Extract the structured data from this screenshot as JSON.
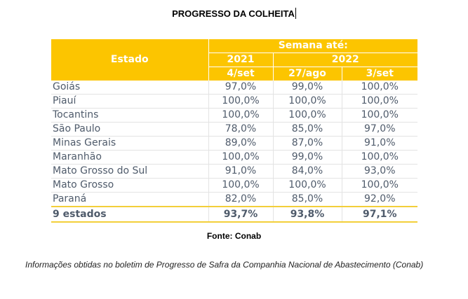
{
  "title": "PROGRESSO DA COLHEITA",
  "table": {
    "header": {
      "state": "Estado",
      "group": "Semana até:",
      "year_2021": "2021",
      "year_2022": "2022",
      "col1": "4/set",
      "col2": "27/ago",
      "col3": "3/set"
    },
    "rows": [
      {
        "state": "Goiás",
        "v1": "97,0%",
        "v2": "99,0%",
        "v3": "100,0%"
      },
      {
        "state": "Piauí",
        "v1": "100,0%",
        "v2": "100,0%",
        "v3": "100,0%"
      },
      {
        "state": "Tocantins",
        "v1": "100,0%",
        "v2": "100,0%",
        "v3": "100,0%"
      },
      {
        "state": "São Paulo",
        "v1": "78,0%",
        "v2": "85,0%",
        "v3": "97,0%"
      },
      {
        "state": "Minas Gerais",
        "v1": "89,0%",
        "v2": "87,0%",
        "v3": "91,0%"
      },
      {
        "state": "Maranhão",
        "v1": "100,0%",
        "v2": "99,0%",
        "v3": "100,0%"
      },
      {
        "state": "Mato Grosso do Sul",
        "v1": "91,0%",
        "v2": "84,0%",
        "v3": "93,0%"
      },
      {
        "state": "Mato Grosso",
        "v1": "100,0%",
        "v2": "100,0%",
        "v3": "100,0%"
      },
      {
        "state": "Paraná",
        "v1": "82,0%",
        "v2": "85,0%",
        "v3": "92,0%"
      }
    ],
    "total": {
      "state": "9 estados",
      "v1": "93,7%",
      "v2": "93,8%",
      "v3": "97,1%"
    }
  },
  "source": "Fonte: Conab",
  "note": "Informações obtidas no boletim de Progresso de Safra da Companhia Nacional de Abastecimento (Conab)",
  "colors": {
    "header_bg": "#fcc500",
    "header_text": "#ffffff",
    "body_text": "#4f5b6b",
    "total_rule": "#f3cf3a"
  }
}
